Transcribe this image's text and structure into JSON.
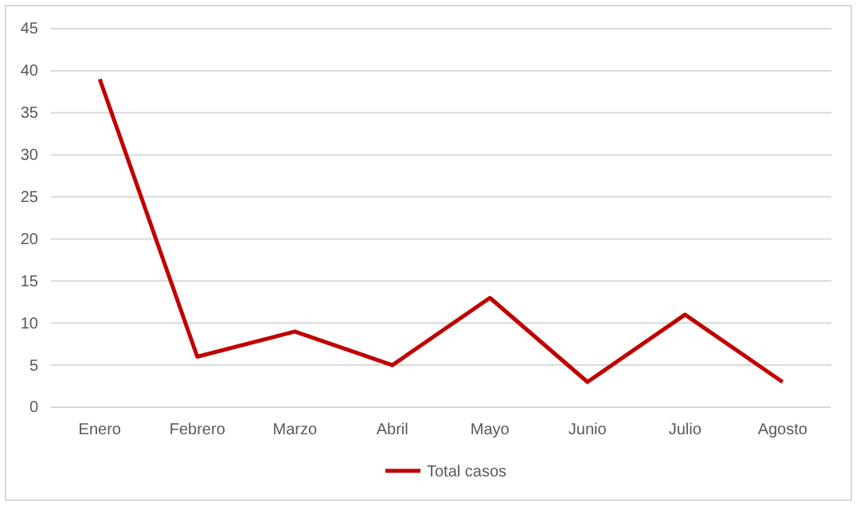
{
  "chart_data": {
    "type": "line",
    "categories": [
      "Enero",
      "Febrero",
      "Marzo",
      "Abril",
      "Mayo",
      "Junio",
      "Julio",
      "Agosto"
    ],
    "series": [
      {
        "name": "Total casos",
        "color": "#c00000",
        "values": [
          39,
          6,
          9,
          5,
          13,
          3,
          11,
          3
        ]
      }
    ],
    "ylim": [
      0,
      45
    ],
    "yticks": [
      0,
      5,
      10,
      15,
      20,
      25,
      30,
      35,
      40,
      45
    ],
    "grid": "y",
    "legend": "bottom",
    "marker": "none"
  }
}
